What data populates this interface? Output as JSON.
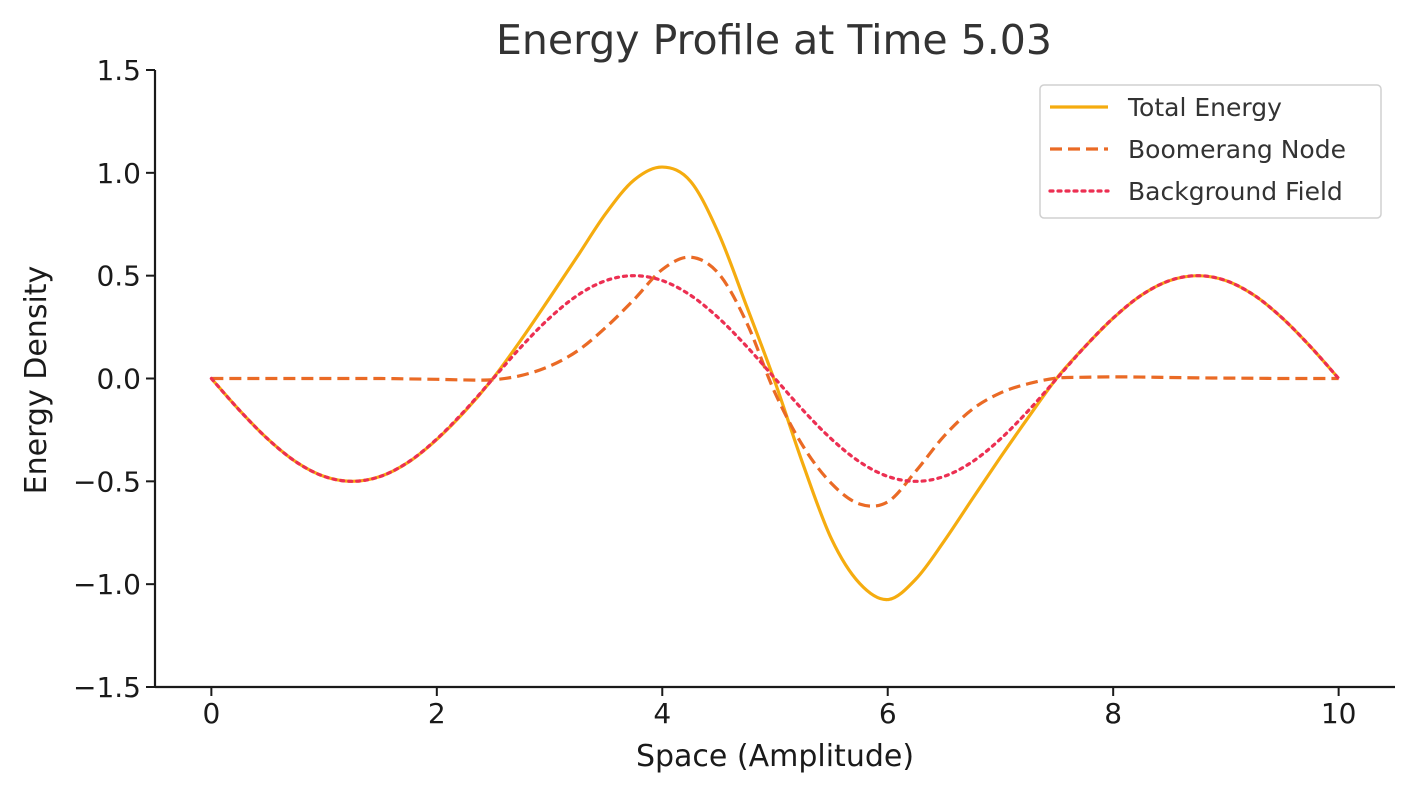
{
  "chart_data": {
    "type": "line",
    "title": "Energy Profile at Time 5.03",
    "xlabel": "Space (Amplitude)",
    "ylabel": "Energy Density",
    "xlim": [
      -0.5,
      10.5
    ],
    "ylim": [
      -1.5,
      1.5
    ],
    "xticks": [
      0,
      2,
      4,
      6,
      8,
      10
    ],
    "xtick_labels": [
      "0",
      "2",
      "4",
      "6",
      "8",
      "10"
    ],
    "yticks": [
      -1.5,
      -1.0,
      -0.5,
      0.0,
      0.5,
      1.0,
      1.5
    ],
    "ytick_labels": [
      "−1.5",
      "−1.0",
      "−0.5",
      "0.0",
      "0.5",
      "1.0",
      "1.5"
    ],
    "grid": false,
    "legend_position": "top-right",
    "x": [
      0,
      0.25,
      0.5,
      0.75,
      1,
      1.25,
      1.5,
      1.75,
      2,
      2.25,
      2.5,
      2.75,
      3,
      3.25,
      3.5,
      3.75,
      4,
      4.25,
      4.5,
      4.75,
      5,
      5.25,
      5.5,
      5.75,
      6,
      6.25,
      6.5,
      6.75,
      7,
      7.25,
      7.5,
      7.75,
      8,
      8.25,
      8.5,
      8.75,
      9,
      9.25,
      9.5,
      9.75,
      10
    ],
    "series": [
      {
        "name": "Total Energy",
        "color": "#f5ac0f",
        "style": "solid",
        "values": [
          0,
          -0.155,
          -0.294,
          -0.405,
          -0.476,
          -0.5,
          -0.476,
          -0.406,
          -0.296,
          -0.159,
          0.002,
          0.19,
          0.391,
          0.596,
          0.803,
          0.965,
          1.028,
          0.959,
          0.705,
          0.349,
          -0.017,
          -0.419,
          -0.779,
          -0.996,
          -1.075,
          -0.975,
          -0.791,
          -0.586,
          -0.383,
          -0.187,
          0.002,
          0.155,
          0.293,
          0.405,
          0.476,
          0.5,
          0.476,
          0.405,
          0.294,
          0.155,
          0
        ]
      },
      {
        "name": "Boomerang Node",
        "color": "#ea6a25",
        "style": "dashed",
        "values": [
          0,
          0,
          0,
          0,
          0,
          0,
          0,
          -0.002,
          -0.004,
          -0.007,
          -0.006,
          0.015,
          0.06,
          0.135,
          0.249,
          0.384,
          0.53,
          0.59,
          0.51,
          0.27,
          -0.07,
          -0.33,
          -0.51,
          -0.61,
          -0.6,
          -0.45,
          -0.28,
          -0.15,
          -0.07,
          -0.025,
          0.002,
          0.006,
          0.008,
          0.007,
          0.005,
          0.003,
          0.002,
          0.001,
          0,
          0,
          0
        ]
      },
      {
        "name": "Background Field",
        "color": "#ec2f52",
        "style": "dotted",
        "values": [
          0,
          -0.155,
          -0.294,
          -0.405,
          -0.476,
          -0.5,
          -0.476,
          -0.405,
          -0.294,
          -0.155,
          0,
          0.155,
          0.294,
          0.405,
          0.476,
          0.5,
          0.476,
          0.405,
          0.294,
          0.155,
          0,
          -0.155,
          -0.294,
          -0.405,
          -0.476,
          -0.5,
          -0.476,
          -0.405,
          -0.294,
          -0.155,
          0,
          0.155,
          0.294,
          0.405,
          0.476,
          0.5,
          0.476,
          0.405,
          0.294,
          0.155,
          0
        ]
      }
    ]
  }
}
